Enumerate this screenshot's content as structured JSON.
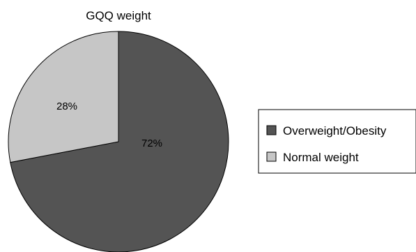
{
  "chart_data": {
    "type": "pie",
    "title": "GQQ weight",
    "slices": [
      {
        "label": "Overweight/Obesity",
        "value": 72,
        "display": "72%",
        "color": "#545454"
      },
      {
        "label": "Normal weight",
        "value": 28,
        "display": "28%",
        "color": "#c6c6c6"
      }
    ],
    "start_angle_deg": 0,
    "direction": "clockwise",
    "legend": "right"
  }
}
